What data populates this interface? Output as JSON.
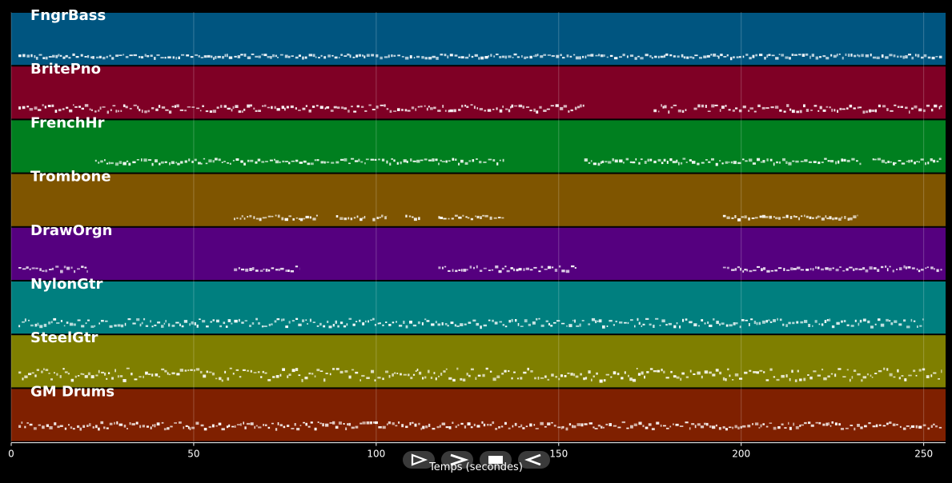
{
  "chart_data": {
    "type": "piano-roll",
    "xlabel": "Temps (secondes)",
    "xlim": [
      0,
      256
    ],
    "x_ticks": [
      0,
      50,
      100,
      150,
      200,
      250
    ],
    "grid": true,
    "tracks": [
      {
        "name": "FngrBass",
        "color": "#005580",
        "segments": [
          [
            2,
            255
          ]
        ],
        "pitch_low": 0.78,
        "pitch_high": 0.85
      },
      {
        "name": "BritePno",
        "color": "#7f0025",
        "segments": [
          [
            2,
            137
          ],
          [
            137,
            157
          ],
          [
            176,
            185
          ],
          [
            187,
            255
          ]
        ],
        "pitch_low": 0.72,
        "pitch_high": 0.85
      },
      {
        "name": "FrenchHr",
        "color": "#007f1f",
        "segments": [
          [
            23,
            135
          ],
          [
            157,
            233
          ],
          [
            236,
            255
          ]
        ],
        "pitch_low": 0.72,
        "pitch_high": 0.82
      },
      {
        "name": "Trombone",
        "color": "#7f5500",
        "segments": [
          [
            61,
            84
          ],
          [
            89,
            97
          ],
          [
            99,
            103
          ],
          [
            108,
            112
          ],
          [
            117,
            135
          ],
          [
            195,
            232
          ]
        ],
        "pitch_low": 0.78,
        "pitch_high": 0.85
      },
      {
        "name": "DrawOrgn",
        "color": "#55007f",
        "segments": [
          [
            2,
            21
          ],
          [
            61,
            79
          ],
          [
            117,
            155
          ],
          [
            195,
            255
          ]
        ],
        "pitch_low": 0.72,
        "pitch_high": 0.82
      },
      {
        "name": "NylonGtr",
        "color": "#007f7f",
        "segments": [
          [
            2,
            23
          ],
          [
            24,
            157
          ],
          [
            158,
            250
          ]
        ],
        "pitch_low": 0.7,
        "pitch_high": 0.85
      },
      {
        "name": "SteelGtr",
        "color": "#7f7f00",
        "segments": [
          [
            2,
            255
          ]
        ],
        "pitch_low": 0.62,
        "pitch_high": 0.85
      },
      {
        "name": "GM Drums",
        "color": "#7f2000",
        "segments": [
          [
            2,
            255
          ]
        ],
        "pitch_low": 0.62,
        "pitch_high": 0.75
      }
    ]
  },
  "controls": {
    "buttons": [
      "play-icon",
      "fast-forward-icon",
      "stop-icon",
      "rewind-icon"
    ]
  }
}
